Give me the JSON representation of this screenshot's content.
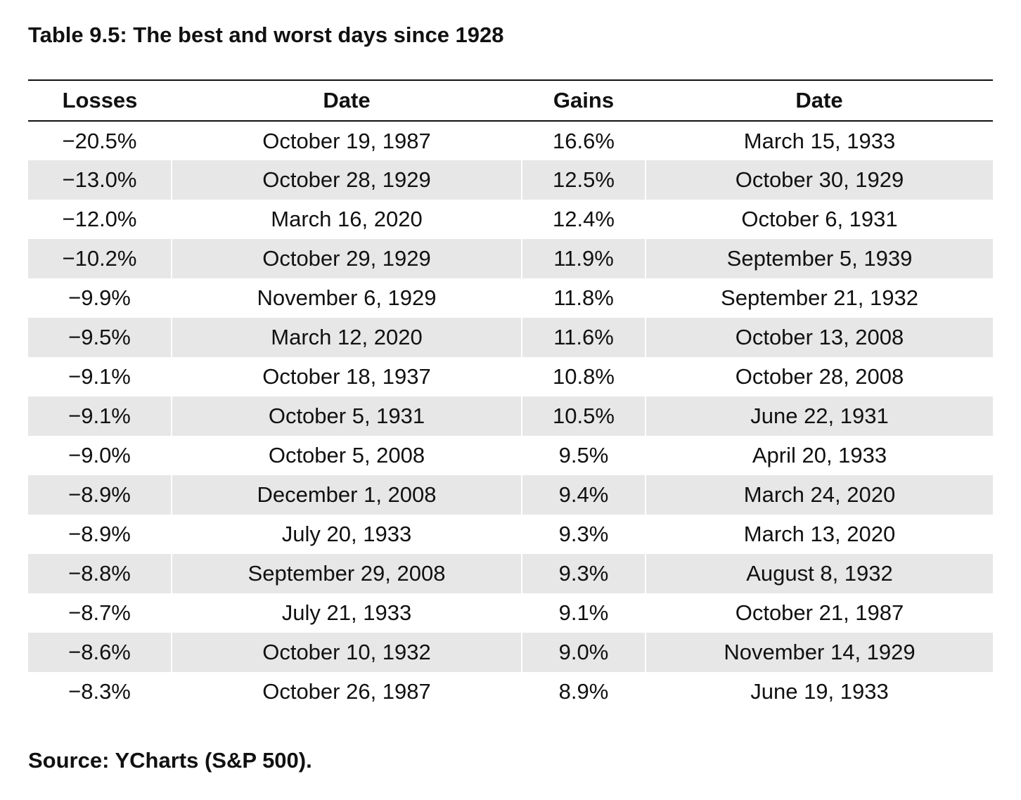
{
  "title": "Table 9.5: The best and worst days since 1928",
  "table": {
    "headers": [
      "Losses",
      "Date",
      "Gains",
      "Date"
    ],
    "rows": [
      [
        "−20.5%",
        "October 19, 1987",
        "16.6%",
        "March 15, 1933"
      ],
      [
        "−13.0%",
        "October 28, 1929",
        "12.5%",
        "October 30, 1929"
      ],
      [
        "−12.0%",
        "March 16, 2020",
        "12.4%",
        "October 6, 1931"
      ],
      [
        "−10.2%",
        "October 29, 1929",
        "11.9%",
        "September 5, 1939"
      ],
      [
        "−9.9%",
        "November 6, 1929",
        "11.8%",
        "September 21, 1932"
      ],
      [
        "−9.5%",
        "March 12, 2020",
        "11.6%",
        "October 13, 2008"
      ],
      [
        "−9.1%",
        "October 18, 1937",
        "10.8%",
        "October 28, 2008"
      ],
      [
        "−9.1%",
        "October 5, 1931",
        "10.5%",
        "June 22, 1931"
      ],
      [
        "−9.0%",
        "October 5, 2008",
        "9.5%",
        "April 20, 1933"
      ],
      [
        "−8.9%",
        "December 1, 2008",
        "9.4%",
        "March 24, 2020"
      ],
      [
        "−8.9%",
        "July 20, 1933",
        "9.3%",
        "March 13, 2020"
      ],
      [
        "−8.8%",
        "September 29, 2008",
        "9.3%",
        "August 8, 1932"
      ],
      [
        "−8.7%",
        "July 21, 1933",
        "9.1%",
        "October 21, 1987"
      ],
      [
        "−8.6%",
        "October 10, 1932",
        "9.0%",
        "November 14, 1929"
      ],
      [
        "−8.3%",
        "October 26, 1987",
        "8.9%",
        "June 19, 1933"
      ]
    ]
  },
  "source": "Source: YCharts (S&P 500).",
  "colors": {
    "text": "#111111",
    "stripe": "#e6e7e6",
    "background": "#ffffff"
  }
}
